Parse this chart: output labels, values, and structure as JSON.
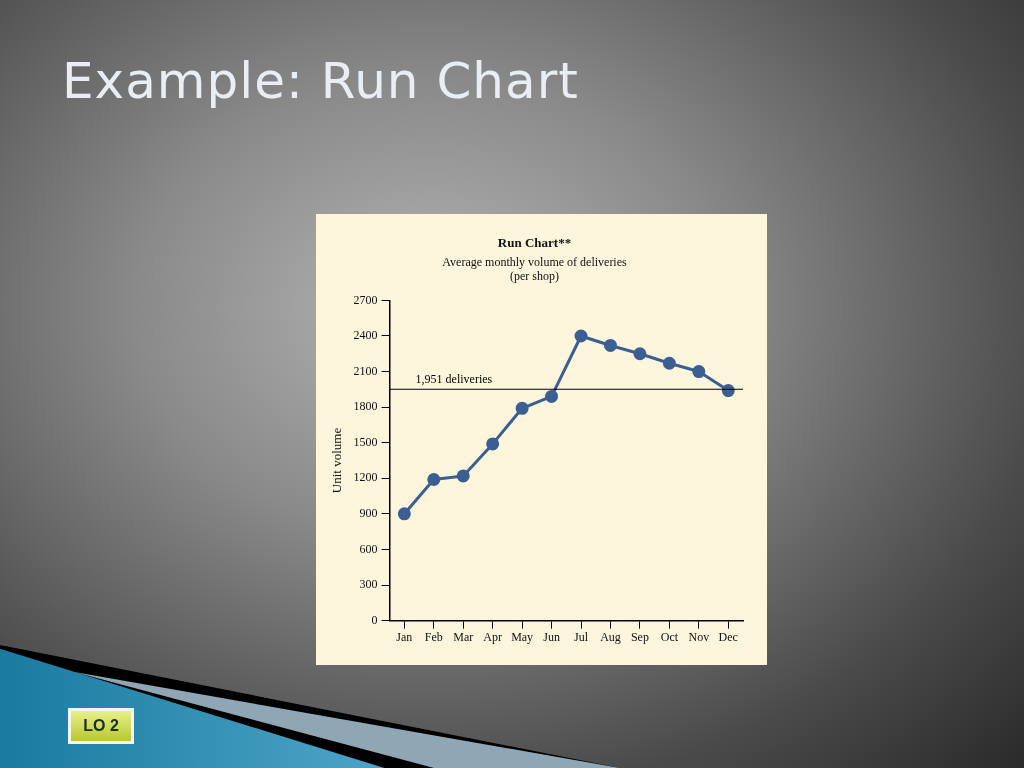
{
  "chart_data": {
    "type": "line",
    "title": "Run Chart**",
    "subtitle": "Average monthly volume of deliveries\n(per shop)",
    "ylabel": "Unit volume",
    "categories": [
      "Jan",
      "Feb",
      "Mar",
      "Apr",
      "May",
      "Jun",
      "Jul",
      "Aug",
      "Sep",
      "Oct",
      "Nov",
      "Dec"
    ],
    "series": [
      {
        "color": "#3b5f93",
        "values": [
          900,
          1190,
          1220,
          1490,
          1790,
          1890,
          2400,
          2320,
          2250,
          2170,
          2100,
          1940
        ]
      }
    ],
    "ylim": [
      0,
      2700
    ],
    "yticks": [
      0,
      300,
      600,
      900,
      1200,
      1500,
      1800,
      2100,
      2400,
      2700
    ],
    "ref_lines": [
      {
        "axis": "y",
        "value": 1951,
        "label": "1,951 deliveries",
        "color": "#000000"
      }
    ],
    "marker": "circle",
    "annotations": [
      "Example: Run Chart",
      "LO 2"
    ]
  }
}
